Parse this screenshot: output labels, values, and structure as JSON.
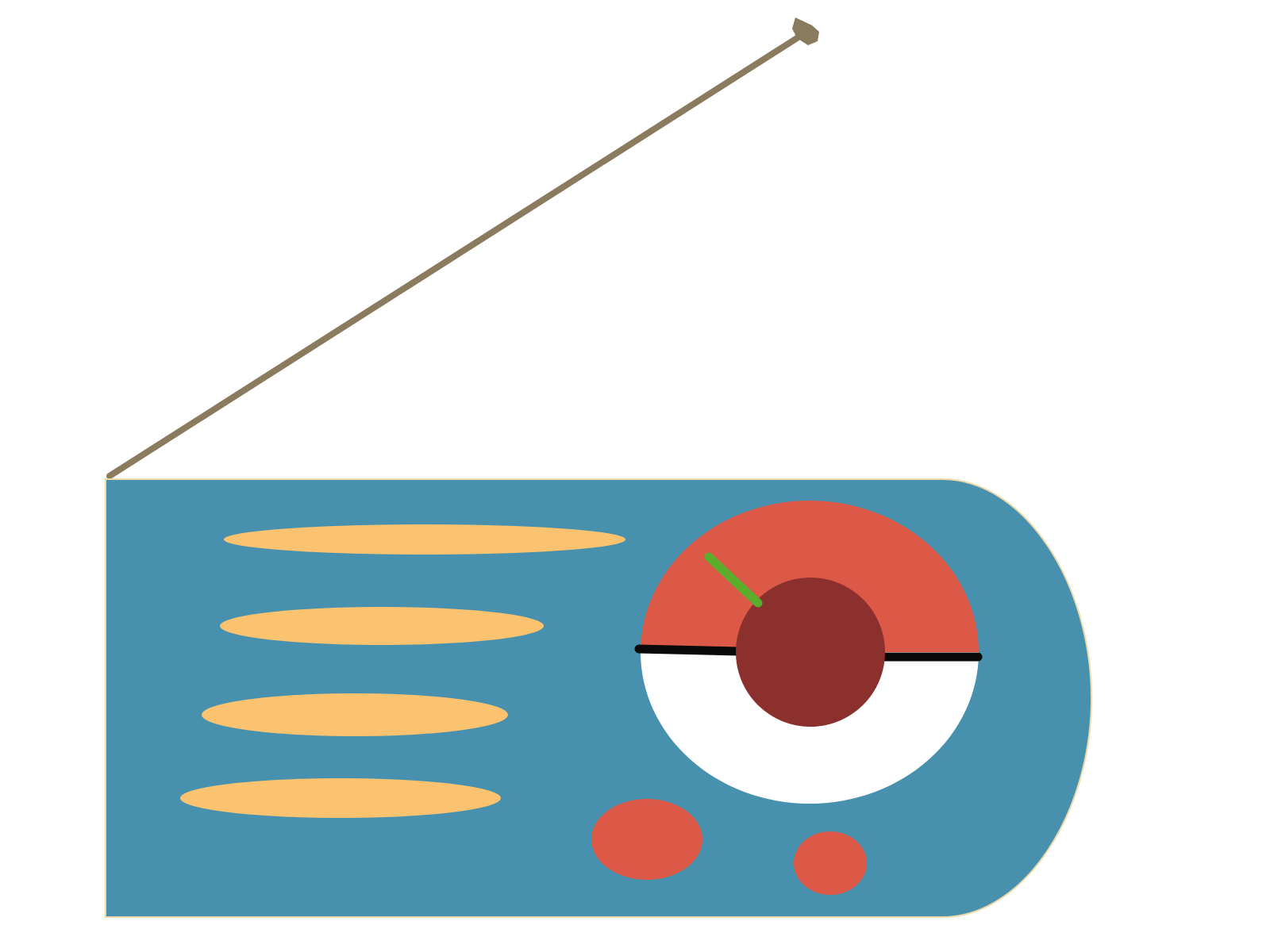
{
  "illustration": {
    "subject": "radio-clipart",
    "colors": {
      "background": "#ffffff",
      "body": "#4791ae",
      "body_outline": "#f0d8a8",
      "grille_slot": "#fbc26f",
      "dial_top": "#dc5948",
      "dial_bottom": "#ffffff",
      "dial_hub": "#8b302d",
      "dial_divider": "#0a0a0a",
      "needle": "#5aae2c",
      "button": "#dc5948",
      "antenna": "#8a7a5e"
    },
    "grille_slot_count": 4,
    "button_count": 2,
    "icons": [
      "antenna-icon",
      "tuning-dial-icon",
      "speaker-grille-icon"
    ]
  }
}
